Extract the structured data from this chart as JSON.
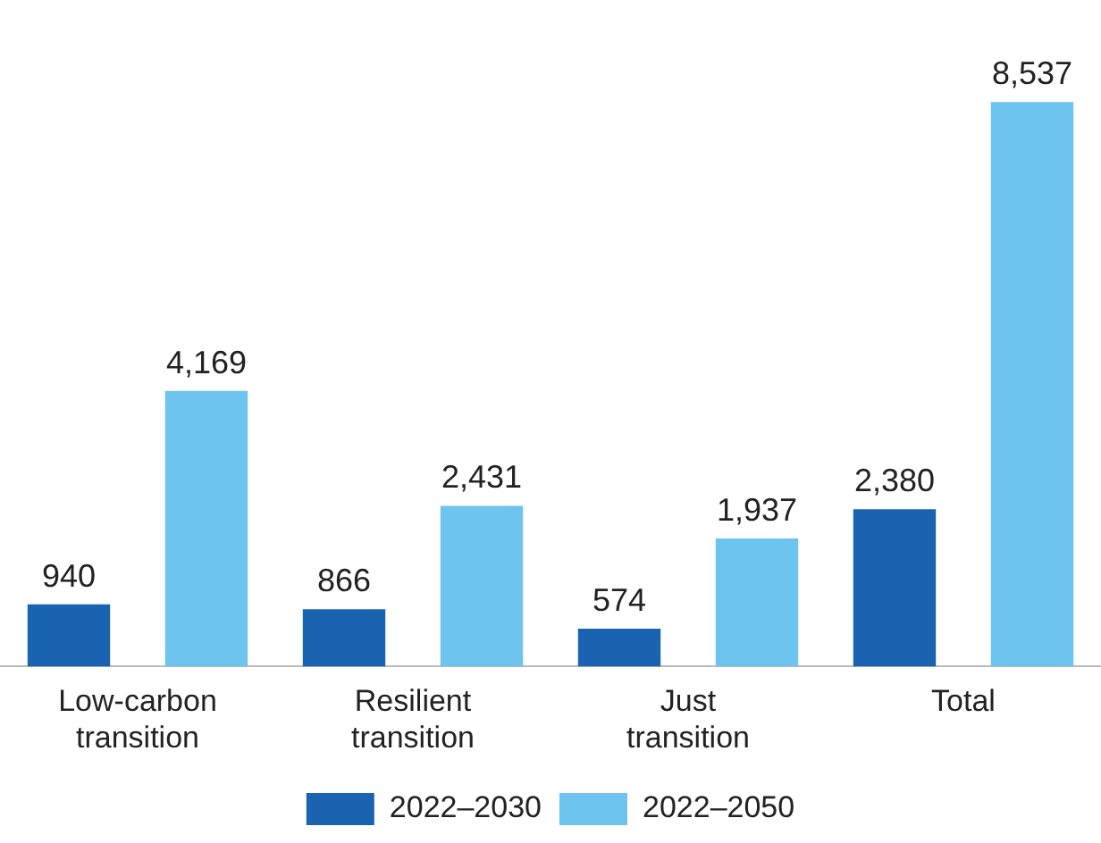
{
  "chart_data": {
    "type": "bar",
    "categories": [
      "Low-carbon transition",
      "Resilient transition",
      "Just transition",
      "Total"
    ],
    "series": [
      {
        "name": "2022–2030",
        "color": "#1a63b0",
        "values": [
          940,
          866,
          574,
          2380
        ],
        "value_labels": [
          "940",
          "866",
          "574",
          "2,380"
        ]
      },
      {
        "name": "2022–2050",
        "color": "#6cc4ef",
        "values": [
          4169,
          2431,
          1937,
          8537
        ],
        "value_labels": [
          "4,169",
          "2,431",
          "1,937",
          "8,537"
        ]
      }
    ],
    "legend": "bottom",
    "grid": false
  }
}
